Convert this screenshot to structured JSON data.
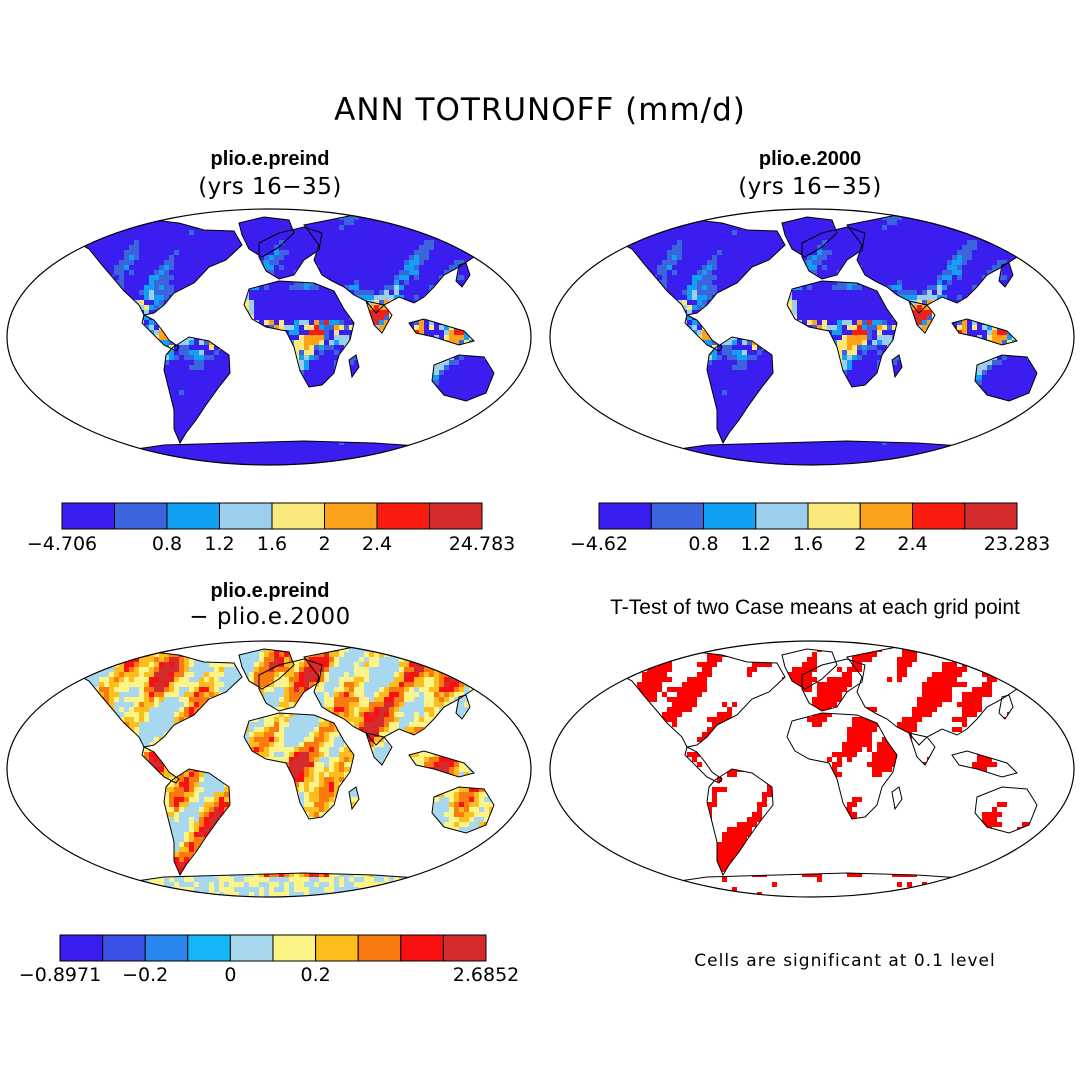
{
  "title": "ANN TOTRUNOFF (mm/d)",
  "panels": [
    {
      "id": "preind",
      "title": "plio.e.preind",
      "subtitle": "(yrs 16−35)",
      "colorbar": {
        "colors": [
          "#3a1ef0",
          "#3c64dd",
          "#12a0f5",
          "#9ccfee",
          "#fbe87a",
          "#fba21a",
          "#fa1c10",
          "#d42c2c"
        ],
        "labels": [
          "−4.706",
          "0.8",
          "1.2",
          "1.6",
          "2",
          "2.4",
          "24.783"
        ]
      }
    },
    {
      "id": "2000",
      "title": "plio.e.2000",
      "subtitle": "(yrs 16−35)",
      "colorbar": {
        "colors": [
          "#3a1ef0",
          "#3c64dd",
          "#12a0f5",
          "#9ccfee",
          "#fbe87a",
          "#fba21a",
          "#fa1c10",
          "#d42c2c"
        ],
        "labels": [
          "−4.62",
          "0.8",
          "1.2",
          "1.6",
          "2",
          "2.4",
          "23.283"
        ]
      }
    },
    {
      "id": "diff",
      "title": "plio.e.preind",
      "subtitle": "− plio.e.2000",
      "colorbar": {
        "colors": [
          "#3a1ef0",
          "#3a4fe6",
          "#2a86ef",
          "#14b6f5",
          "#a8d8f0",
          "#fcf486",
          "#fcbe1c",
          "#fb7a10",
          "#fa1010",
          "#d42c2c"
        ],
        "labels": [
          "−0.8971",
          "−0.2",
          "0",
          "0.2",
          "2.6852"
        ]
      }
    },
    {
      "id": "ttest",
      "title": "T-Test of two Case means at each grid point",
      "footnote": "Cells are significant at 0.1 level"
    }
  ]
}
